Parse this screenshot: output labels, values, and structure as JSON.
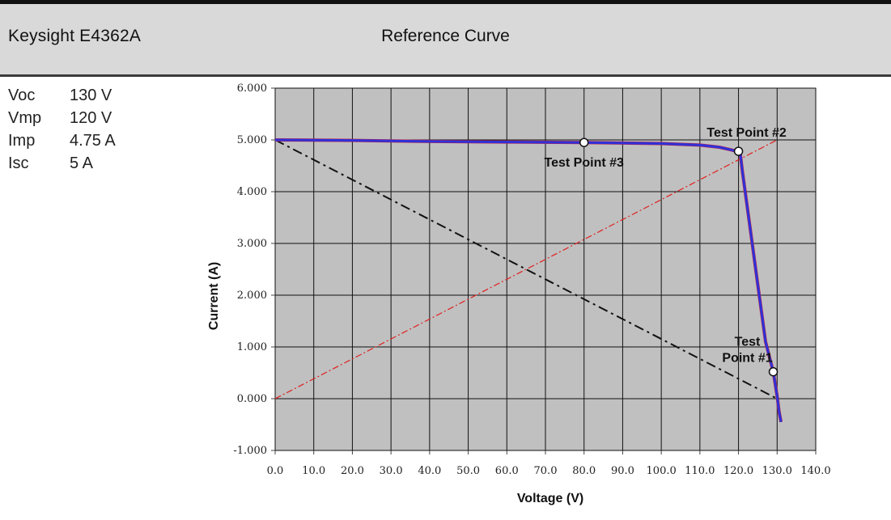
{
  "header": {
    "instrument": "Keysight E4362A",
    "title": "Reference Curve"
  },
  "parameters": [
    {
      "label": "Voc",
      "value": "130 V"
    },
    {
      "label": "Vmp",
      "value": "120 V"
    },
    {
      "label": "Imp",
      "value": "4.75 A"
    },
    {
      "label": "Isc",
      "value": "5 A"
    }
  ],
  "colors": {
    "plot_background": "#c0c0c0",
    "curve": "#3030d8",
    "curve_underlay": "#c02040",
    "load_line_red": "#e02020",
    "load_line_black": "#111111"
  },
  "chart_data": {
    "type": "line",
    "xlabel": "Voltage (V)",
    "ylabel": "Current (A)",
    "xlim": [
      0,
      140
    ],
    "ylim": [
      -1,
      6
    ],
    "x_ticks": [
      "0.0",
      "10.0",
      "20.0",
      "30.0",
      "40.0",
      "50.0",
      "60.0",
      "70.0",
      "80.0",
      "90.0",
      "100.0",
      "110.0",
      "120.0",
      "130.0",
      "140.0"
    ],
    "y_ticks": [
      "6.000",
      "5.000",
      "4.000",
      "3.000",
      "2.000",
      "1.000",
      "0.000",
      "-1.000"
    ],
    "grid": true,
    "series": [
      {
        "x": [
          0,
          20,
          40,
          60,
          80,
          100,
          110,
          115,
          118,
          119.5,
          120.5,
          121,
          123,
          125,
          127,
          129,
          130,
          130.5,
          131
        ],
        "y": [
          5.0,
          4.99,
          4.97,
          4.96,
          4.95,
          4.93,
          4.9,
          4.86,
          4.81,
          4.78,
          4.7,
          4.4,
          3.3,
          2.2,
          1.1,
          0.52,
          0.05,
          -0.25,
          -0.45
        ],
        "style": "solid"
      },
      {
        "x": [
          0,
          130
        ],
        "y": [
          0,
          5
        ],
        "style": "dash-dot",
        "color": "red"
      },
      {
        "x": [
          0,
          130
        ],
        "y": [
          5,
          0
        ],
        "style": "dash-dot",
        "color": "black"
      }
    ],
    "test_points": [
      {
        "label": "Test Point #3",
        "x": 80,
        "y": 4.95
      },
      {
        "label": "Test Point #2",
        "x": 120,
        "y": 4.78
      },
      {
        "label": "Test Point #1",
        "x": 129,
        "y": 0.52,
        "label_lines": [
          "Test",
          "Point #1"
        ]
      }
    ]
  }
}
